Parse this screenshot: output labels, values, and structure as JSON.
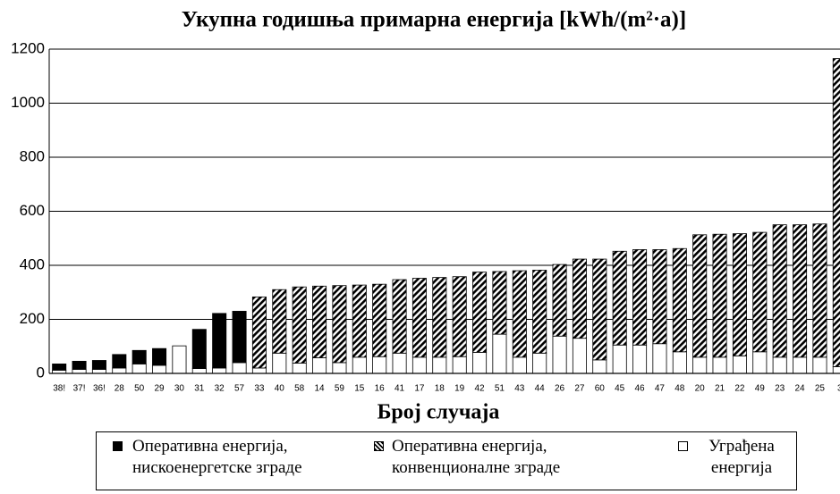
{
  "chart_data": {
    "type": "stacked_bar",
    "title": "Укупна годишња примарна енергија [kWh/(m²·a)]",
    "x_label": "Број случаја",
    "categories": [
      "38!",
      "37!",
      "36!",
      "28",
      "50",
      "29",
      "30",
      "31",
      "32",
      "57",
      "33",
      "40",
      "58",
      "14",
      "59",
      "15",
      "16",
      "41",
      "17",
      "18",
      "19",
      "42",
      "51",
      "43",
      "44",
      "26",
      "27",
      "60",
      "45",
      "46",
      "47",
      "48",
      "20",
      "21",
      "22",
      "49",
      "23",
      "24",
      "25",
      "3"
    ],
    "series": [
      {
        "name": "Оперативна енергија, нискоенергетске зграде",
        "color": "#000000",
        "fill": "solid",
        "values": [
          23,
          30,
          33,
          50,
          50,
          62,
          0,
          145,
          202,
          190,
          0,
          0,
          0,
          0,
          0,
          0,
          0,
          0,
          0,
          0,
          0,
          0,
          0,
          0,
          0,
          0,
          0,
          0,
          0,
          0,
          0,
          0,
          0,
          0,
          0,
          0,
          0,
          0,
          0,
          0
        ]
      },
      {
        "name": "Оперативна енергија, конвенционалне зграде",
        "color": "#000000",
        "fill": "hatch",
        "values": [
          0,
          0,
          0,
          0,
          0,
          0,
          0,
          0,
          0,
          0,
          263,
          235,
          282,
          265,
          285,
          267,
          268,
          272,
          292,
          295,
          296,
          297,
          232,
          320,
          307,
          265,
          293,
          373,
          347,
          353,
          348,
          382,
          453,
          455,
          452,
          442,
          490,
          490,
          493,
          1140
        ]
      },
      {
        "name": "Уграђена енергија",
        "color": "#ffffff",
        "fill": "solid",
        "values": [
          12,
          15,
          15,
          20,
          35,
          30,
          102,
          18,
          20,
          40,
          20,
          75,
          38,
          58,
          40,
          60,
          62,
          75,
          60,
          60,
          62,
          78,
          145,
          60,
          75,
          138,
          130,
          50,
          105,
          105,
          110,
          80,
          60,
          60,
          65,
          80,
          60,
          60,
          60,
          25
        ]
      }
    ],
    "ylim": [
      0,
      1200
    ],
    "yticks": [
      0,
      200,
      400,
      600,
      800,
      1000,
      1200
    ],
    "grid": true
  }
}
